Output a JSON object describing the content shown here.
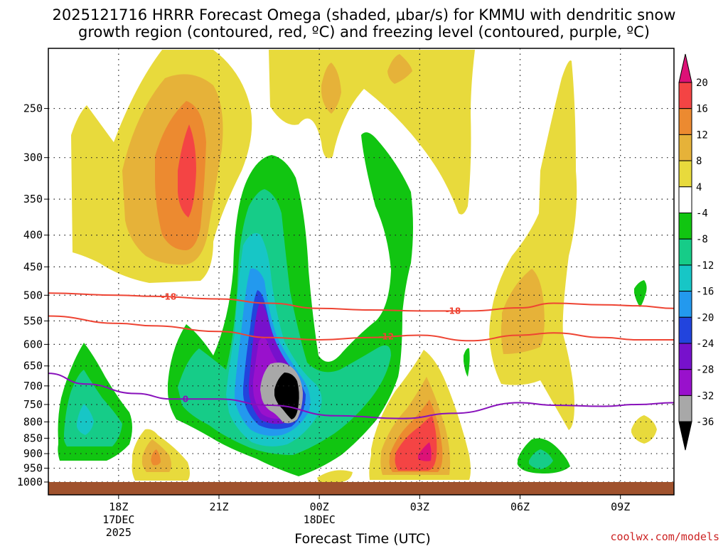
{
  "chart_data": {
    "type": "contour",
    "title_line1": "2025121716 HRRR Forecast Omega (shaded, μbar/s) for KMMU with dendritic snow",
    "title_line2": "growth region (contoured, red, ºC) and freezing level (contoured, purple, ºC)",
    "xlabel": "Forecast Time (UTC)",
    "credit": "coolwx.com/models",
    "y_axis": {
      "scale": "pressure (mb), inverted",
      "ylim": [
        1000,
        200
      ],
      "ticks": [
        250,
        300,
        350,
        400,
        450,
        500,
        550,
        600,
        650,
        700,
        750,
        800,
        850,
        900,
        950,
        1000
      ]
    },
    "x_axis": {
      "xlim_hours": [
        -2.1,
        16.6
      ],
      "ticks": [
        {
          "hour": 0,
          "label": "18Z",
          "sub1": "17DEC",
          "sub2": "2025"
        },
        {
          "hour": 3,
          "label": "21Z"
        },
        {
          "hour": 6,
          "label": "00Z",
          "sub1": "18DEC"
        },
        {
          "hour": 9,
          "label": "03Z"
        },
        {
          "hour": 12,
          "label": "06Z"
        },
        {
          "hour": 15,
          "label": "09Z"
        }
      ]
    },
    "colorbar": {
      "levels": [
        "20",
        "16",
        "12",
        "8",
        "4",
        "-4",
        "-8",
        "-12",
        "-16",
        "-20",
        "-24",
        "-28",
        "-32",
        "-36"
      ],
      "bins": [
        {
          "from": 16,
          "to": 20,
          "color": "#f44444"
        },
        {
          "from": 12,
          "to": 16,
          "color": "#ec8a30"
        },
        {
          "from": 8,
          "to": 12,
          "color": "#e6b239"
        },
        {
          "from": 4,
          "to": 8,
          "color": "#e8da3c"
        },
        {
          "from": -4,
          "to": 4,
          "color": "#ffffff"
        },
        {
          "from": -8,
          "to": -4,
          "color": "#11c511"
        },
        {
          "from": -12,
          "to": -8,
          "color": "#16cc88"
        },
        {
          "from": -16,
          "to": -12,
          "color": "#17c6c6"
        },
        {
          "from": -20,
          "to": -16,
          "color": "#2399ee"
        },
        {
          "from": -24,
          "to": -20,
          "color": "#2244dd"
        },
        {
          "from": -28,
          "to": -24,
          "color": "#7711cc"
        },
        {
          "from": -32,
          "to": -28,
          "color": "#9911cc"
        },
        {
          "from": -36,
          "to": -32,
          "color": "#a8a8a8"
        }
      ],
      "over_color": "#dd1177",
      "under_color": "#000000"
    },
    "omega_features": [
      {
        "name": "max-upward-core",
        "category": "< -36",
        "hour": 5.0,
        "pressure": 720,
        "color": "#000000"
      },
      {
        "name": "sinking-max-upper",
        "category": "16 to 20",
        "hour": 1.9,
        "pressure": 320,
        "color": "#f44444"
      },
      {
        "name": "sinking-max-low",
        "category": "16 to 20",
        "hour": 8.8,
        "pressure": 910,
        "color": "#f44444"
      }
    ],
    "isotherms": [
      {
        "label": "-18",
        "color": "#ee4433",
        "pressure": [
          496,
          500,
          502,
          507,
          515,
          525,
          528,
          530,
          530,
          524,
          515,
          518,
          520,
          525
        ],
        "hours": [
          -2.1,
          0.0,
          1.0,
          3.0,
          4.5,
          6.0,
          7.5,
          9.0,
          10.5,
          12.0,
          13.0,
          14.5,
          15.5,
          16.6
        ]
      },
      {
        "label": "-12",
        "color": "#ee4433",
        "pressure": [
          540,
          555,
          560,
          572,
          585,
          590,
          585,
          580,
          592,
          580,
          575,
          585,
          590,
          590
        ],
        "hours": [
          -2.1,
          0.0,
          1.0,
          3.0,
          4.5,
          6.0,
          7.5,
          9.0,
          10.5,
          12.0,
          13.0,
          14.5,
          15.5,
          16.6
        ]
      },
      {
        "label": "0",
        "color": "#8811bb",
        "pressure": [
          668,
          695,
          720,
          735,
          735,
          752,
          782,
          790,
          775,
          745,
          752,
          755,
          750,
          745
        ],
        "hours": [
          -2.1,
          -1.0,
          0.5,
          1.6,
          3.0,
          4.5,
          6.5,
          8.5,
          10.0,
          12.0,
          13.0,
          14.5,
          15.5,
          16.6
        ]
      }
    ],
    "surface_color": "#a0522d"
  }
}
